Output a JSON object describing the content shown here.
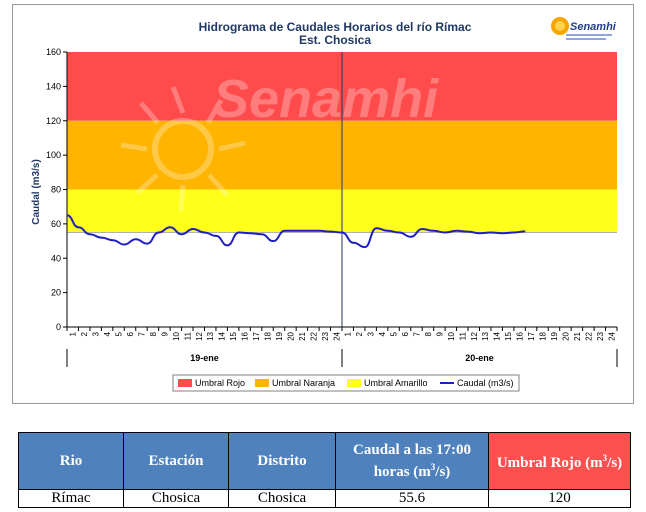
{
  "chart_data": {
    "type": "line",
    "title": "Hidrograma de Caudales Horarios del río Rímac",
    "subtitle": "Est. Chosica",
    "ylabel": "Caudal  (m3/s)",
    "ylim": [
      0,
      160
    ],
    "yticks": [
      "0",
      "20",
      "40",
      "60",
      "80",
      "100",
      "120",
      "140",
      "160"
    ],
    "day_labels": [
      "19-ene",
      "20-ene"
    ],
    "hour_ticks": [
      "1",
      "2",
      "3",
      "4",
      "5",
      "6",
      "7",
      "8",
      "9",
      "10",
      "11",
      "12",
      "13",
      "14",
      "15",
      "16",
      "17",
      "18",
      "19",
      "20",
      "21",
      "22",
      "23",
      "24"
    ],
    "bands": [
      {
        "name": "Umbral Rojo",
        "from": 120,
        "to": 160,
        "color": "#ff4b4b"
      },
      {
        "name": "Umbral Naranja",
        "from": 80,
        "to": 120,
        "color": "#ffb400"
      },
      {
        "name": "Umbral Amarillo",
        "from": 55,
        "to": 80,
        "color": "#ffff1a"
      }
    ],
    "series": [
      {
        "name": "Caudal (m3/s)",
        "color": "#1f1fbf",
        "x": [
          "19-ene 1",
          "19-ene 2",
          "19-ene 3",
          "19-ene 4",
          "19-ene 5",
          "19-ene 6",
          "19-ene 7",
          "19-ene 8",
          "19-ene 9",
          "19-ene 10",
          "19-ene 11",
          "19-ene 12",
          "19-ene 13",
          "19-ene 14",
          "19-ene 15",
          "19-ene 16",
          "19-ene 17",
          "19-ene 18",
          "19-ene 19",
          "19-ene 20",
          "19-ene 21",
          "19-ene 22",
          "19-ene 23",
          "19-ene 24",
          "20-ene 1",
          "20-ene 2",
          "20-ene 3",
          "20-ene 4",
          "20-ene 5",
          "20-ene 6",
          "20-ene 7",
          "20-ene 8",
          "20-ene 9",
          "20-ene 10",
          "20-ene 11",
          "20-ene 12",
          "20-ene 13",
          "20-ene 14",
          "20-ene 15",
          "20-ene 16",
          "20-ene 17"
        ],
        "values": [
          65.0,
          58.0,
          54.0,
          52.0,
          50.5,
          48.0,
          51.0,
          48.5,
          55.0,
          58.0,
          54.0,
          57.0,
          55.0,
          53.0,
          47.5,
          55.0,
          54.5,
          54.0,
          50.0,
          56.0,
          56.0,
          56.0,
          56.0,
          55.5,
          55.0,
          49.0,
          46.5,
          57.5,
          56.0,
          55.0,
          52.5,
          57.0,
          56.0,
          55.0,
          56.0,
          55.5,
          54.5,
          55.0,
          54.5,
          55.0,
          55.6
        ]
      }
    ],
    "legend": "bottom"
  },
  "watermark": "Senamhi",
  "logo_text": "Senamhi",
  "table": {
    "headers": [
      "Rio",
      "Estación",
      "Distrito",
      "Caudal a las 17:00 horas (m3/s)",
      "Umbral Rojo (m3/s)"
    ],
    "row": [
      "Rímac",
      "Chosica",
      "Chosica",
      "55.6",
      "120"
    ]
  }
}
